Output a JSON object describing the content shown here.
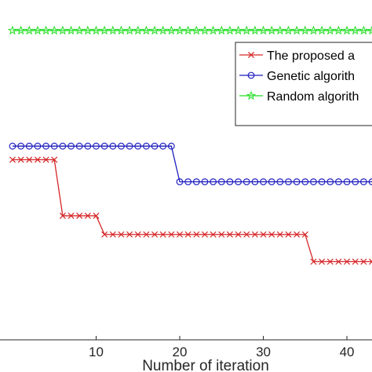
{
  "chart_data": {
    "type": "line",
    "title": "",
    "xlabel": "Number of iteration",
    "ylabel": "",
    "xlim": [
      -1.5,
      43
    ],
    "ylim": [
      0,
      100
    ],
    "x_ticks": [
      10,
      20,
      30,
      40
    ],
    "grid": false,
    "legend_position": "top-right",
    "series": [
      {
        "name": "The proposed a",
        "color": "#d62728",
        "marker": "x",
        "x": [
          0,
          1,
          2,
          3,
          4,
          5,
          6,
          7,
          8,
          9,
          10,
          11,
          12,
          13,
          14,
          15,
          16,
          17,
          18,
          19,
          20,
          21,
          22,
          23,
          24,
          25,
          26,
          27,
          28,
          29,
          30,
          31,
          32,
          33,
          34,
          35,
          36,
          37,
          38,
          39,
          40,
          41,
          42,
          43
        ],
        "y": [
          53,
          53,
          53,
          53,
          53,
          53,
          36.5,
          36.5,
          36.5,
          36.5,
          36.5,
          31,
          31,
          31,
          31,
          31,
          31,
          31,
          31,
          31,
          31,
          31,
          31,
          31,
          31,
          31,
          31,
          31,
          31,
          31,
          31,
          31,
          31,
          31,
          31,
          31,
          23,
          23,
          23,
          23,
          23,
          23,
          23,
          23
        ]
      },
      {
        "name": "Genetic algorith",
        "color": "#1f1fbf",
        "marker": "o",
        "x": [
          0,
          1,
          2,
          3,
          4,
          5,
          6,
          7,
          8,
          9,
          10,
          11,
          12,
          13,
          14,
          15,
          16,
          17,
          18,
          19,
          20,
          21,
          22,
          23,
          24,
          25,
          26,
          27,
          28,
          29,
          30,
          31,
          32,
          33,
          34,
          35,
          36,
          37,
          38,
          39,
          40,
          41,
          42,
          43
        ],
        "y": [
          57,
          57,
          57,
          57,
          57,
          57,
          57,
          57,
          57,
          57,
          57,
          57,
          57,
          57,
          57,
          57,
          57,
          57,
          57,
          57,
          46.5,
          46.5,
          46.5,
          46.5,
          46.5,
          46.5,
          46.5,
          46.5,
          46.5,
          46.5,
          46.5,
          46.5,
          46.5,
          46.5,
          46.5,
          46.5,
          46.5,
          46.5,
          46.5,
          46.5,
          46.5,
          46.5,
          46.5,
          46.5
        ]
      },
      {
        "name": "Random algorith",
        "color": "#22dd22",
        "marker": "*",
        "x": [
          0,
          1,
          2,
          3,
          4,
          5,
          6,
          7,
          8,
          9,
          10,
          11,
          12,
          13,
          14,
          15,
          16,
          17,
          18,
          19,
          20,
          21,
          22,
          23,
          24,
          25,
          26,
          27,
          28,
          29,
          30,
          31,
          32,
          33,
          34,
          35,
          36,
          37,
          38,
          39,
          40,
          41,
          42,
          43
        ],
        "y": [
          91,
          91,
          91,
          91,
          91,
          91,
          91,
          91,
          91,
          91,
          91,
          91,
          91,
          91,
          91,
          91,
          91,
          91,
          91,
          91,
          91,
          91,
          91,
          91,
          91,
          91,
          91,
          91,
          91,
          91,
          91,
          91,
          91,
          91,
          91,
          91,
          91,
          91,
          91,
          91,
          91,
          91,
          91,
          91
        ]
      }
    ]
  }
}
